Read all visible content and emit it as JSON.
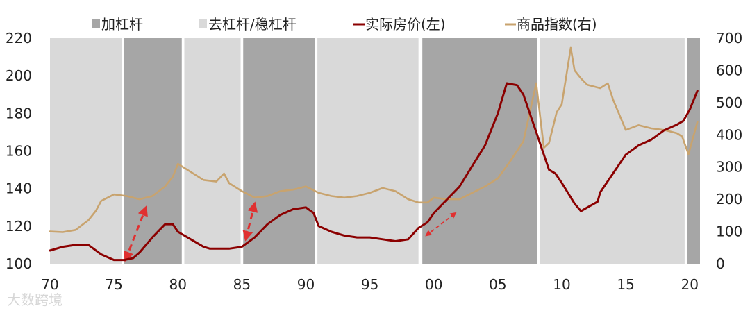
{
  "chart_data": {
    "type": "line",
    "title": "",
    "xlabel": "",
    "ylabel_left": "",
    "ylabel_right": "",
    "x_range": [
      1970,
      2020.8
    ],
    "ylim_left": [
      100,
      220
    ],
    "ylim_right": [
      0,
      700
    ],
    "x_ticks": [
      {
        "value": 1970,
        "label": "70"
      },
      {
        "value": 1975,
        "label": "75"
      },
      {
        "value": 1980,
        "label": "80"
      },
      {
        "value": 1985,
        "label": "85"
      },
      {
        "value": 1990,
        "label": "90"
      },
      {
        "value": 1995,
        "label": "95"
      },
      {
        "value": 2000,
        "label": "00"
      },
      {
        "value": 2005,
        "label": "05"
      },
      {
        "value": 2010,
        "label": "10"
      },
      {
        "value": 2015,
        "label": "15"
      },
      {
        "value": 2020,
        "label": "20"
      }
    ],
    "y_left_ticks": [
      100,
      120,
      140,
      160,
      180,
      200,
      220
    ],
    "y_right_ticks": [
      0,
      100,
      200,
      300,
      400,
      500,
      600,
      700
    ],
    "grid": false,
    "legend_position": "top",
    "colors": {
      "leverage": "#a6a6a6",
      "deleverage": "#d9d9d9",
      "house_price": "#8b0000",
      "commodity": "#c8a36e",
      "arrow": "#e03030"
    },
    "regimes": [
      {
        "type": "deleverage",
        "start": 1970.0,
        "end": 1975.6
      },
      {
        "type": "leverage",
        "start": 1975.8,
        "end": 1980.3
      },
      {
        "type": "deleverage",
        "start": 1980.5,
        "end": 1984.9
      },
      {
        "type": "leverage",
        "start": 1985.1,
        "end": 1990.7
      },
      {
        "type": "deleverage",
        "start": 1990.9,
        "end": 1998.8
      },
      {
        "type": "leverage",
        "start": 1999.1,
        "end": 2008.1
      },
      {
        "type": "deleverage",
        "start": 2008.3,
        "end": 2019.6
      },
      {
        "type": "leverage",
        "start": 2019.8,
        "end": 2020.8
      }
    ],
    "series": [
      {
        "name": "实际房价(左)",
        "axis": "left",
        "x": [
          1970,
          1971,
          1972,
          1973,
          1974,
          1975,
          1975.8,
          1976.5,
          1977,
          1978,
          1979,
          1979.6,
          1980,
          1981,
          1982,
          1982.5,
          1983,
          1984,
          1985,
          1986,
          1987,
          1988,
          1989,
          1990,
          1990.6,
          1991,
          1992,
          1993,
          1994,
          1995,
          1996,
          1997,
          1998,
          1998.8,
          1999.5,
          2000,
          2001,
          2002,
          2003,
          2004,
          2005,
          2005.7,
          2006.5,
          2007,
          2008,
          2009,
          2009.5,
          2010,
          2011,
          2011.5,
          2012,
          2012.8,
          2013,
          2014,
          2015,
          2016,
          2017,
          2018,
          2019,
          2019.5,
          2020,
          2020.6
        ],
        "values": [
          107,
          109,
          110,
          110,
          105,
          102,
          102,
          103,
          106,
          114,
          121,
          121,
          117,
          113,
          109,
          108,
          108,
          108,
          109,
          114,
          121,
          126,
          129,
          130,
          127,
          120,
          117,
          115,
          114,
          114,
          113,
          112,
          113,
          119,
          122,
          127,
          134,
          141,
          152,
          163,
          180,
          196,
          195,
          190,
          170,
          150,
          148,
          143,
          132,
          128,
          130,
          133,
          138,
          148,
          158,
          163,
          166,
          171,
          174,
          176,
          182,
          192
        ]
      },
      {
        "name": "商品指数(右)",
        "axis": "right",
        "x": [
          1970,
          1971,
          1972,
          1973,
          1973.6,
          1974,
          1975,
          1976,
          1977,
          1978,
          1979,
          1979.6,
          1980,
          1981,
          1982,
          1983,
          1983.6,
          1984,
          1985,
          1986,
          1987,
          1988,
          1989,
          1990,
          1991,
          1992,
          1993,
          1994,
          1995,
          1996,
          1997,
          1998,
          1998.8,
          1999.5,
          2000,
          2001,
          2002,
          2003,
          2004,
          2005,
          2006,
          2007,
          2008,
          2008.6,
          2009,
          2009.6,
          2010,
          2010.7,
          2011,
          2011.5,
          2012,
          2013,
          2013.6,
          2014,
          2015,
          2016,
          2017,
          2018,
          2019,
          2019.4,
          2019.9,
          2020.6
        ],
        "values": [
          100,
          98,
          105,
          135,
          165,
          195,
          215,
          210,
          200,
          210,
          240,
          270,
          310,
          285,
          260,
          255,
          280,
          250,
          225,
          205,
          210,
          225,
          230,
          240,
          220,
          210,
          205,
          210,
          220,
          235,
          225,
          200,
          190,
          190,
          205,
          200,
          200,
          220,
          240,
          265,
          320,
          380,
          560,
          360,
          375,
          470,
          495,
          670,
          600,
          575,
          555,
          545,
          560,
          510,
          415,
          430,
          420,
          415,
          405,
          395,
          340,
          440
        ]
      }
    ],
    "legend": [
      {
        "key": "leverage",
        "label": "加杠杆",
        "kind": "box"
      },
      {
        "key": "deleverage",
        "label": "去杠杆/稳杠杆",
        "kind": "box"
      },
      {
        "key": "house_price",
        "label": "实际房价(左)",
        "kind": "line"
      },
      {
        "key": "commodity",
        "label": "商品指数(右)",
        "kind": "line"
      }
    ],
    "annotations": [
      {
        "type": "double-arrow",
        "from": [
          1975.9,
          102
        ],
        "to": [
          1977.5,
          130
        ]
      },
      {
        "type": "double-arrow",
        "from": [
          1985.3,
          113
        ],
        "to": [
          1986.0,
          132
        ]
      },
      {
        "type": "double-arrow",
        "from": [
          1999.4,
          115
        ],
        "to": [
          2001.7,
          127
        ]
      }
    ]
  },
  "watermark": "大数跨境"
}
